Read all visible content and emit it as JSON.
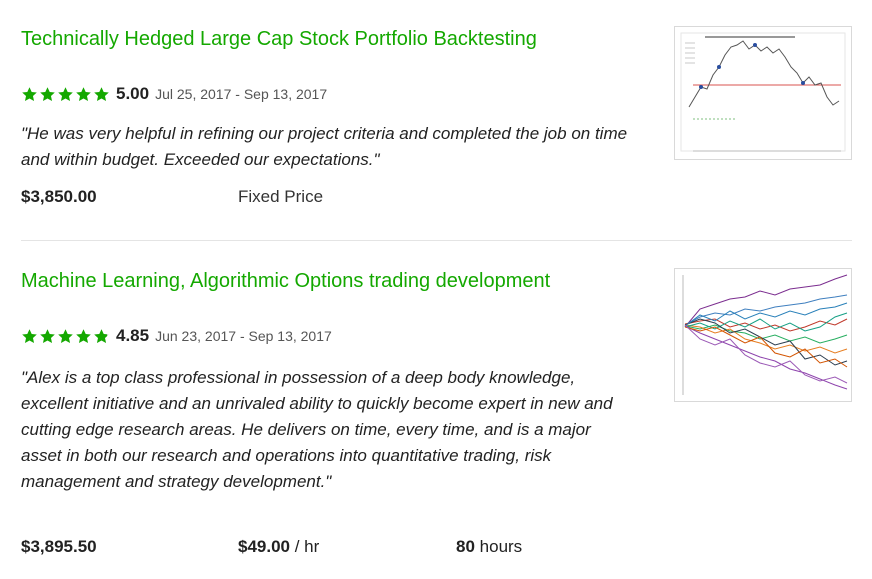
{
  "colors": {
    "accent": "#14a800",
    "star": "#14a800",
    "divider": "#e4e4e4"
  },
  "jobs": [
    {
      "title": "Technically Hedged Large Cap Stock Portfolio Backtesting",
      "rating": "5.00",
      "stars": 5,
      "dates": "Jul 25, 2017 - Sep 13, 2017",
      "feedback": "\"He was very helpful in refining our project criteria and completed the job on time and within budget. Exceeded our expectations.\"",
      "amount": "$3,850.00",
      "price_type": "Fixed Price",
      "thumbnail": "stock-price-chart-thumbnail"
    },
    {
      "title": "Machine Learning, Algorithmic Options trading development",
      "rating": "4.85",
      "stars": 4.85,
      "dates": "Jun 23, 2017 - Sep 13, 2017",
      "feedback": "\"Alex is a top class professional in possession of a deep body knowledge, excellent initiative and an unrivaled ability to quickly become expert in new and cutting edge research areas. He delivers on time, every time, and is a major asset in both our research and operations into quantitative trading, risk management and strategy development.\"",
      "amount": "$3,895.50",
      "hourly_rate": "$49.00",
      "hourly_unit": "/ hr",
      "hours_value": "80",
      "hours_unit": "hours",
      "thumbnail": "multi-line-simulation-chart-thumbnail"
    }
  ]
}
